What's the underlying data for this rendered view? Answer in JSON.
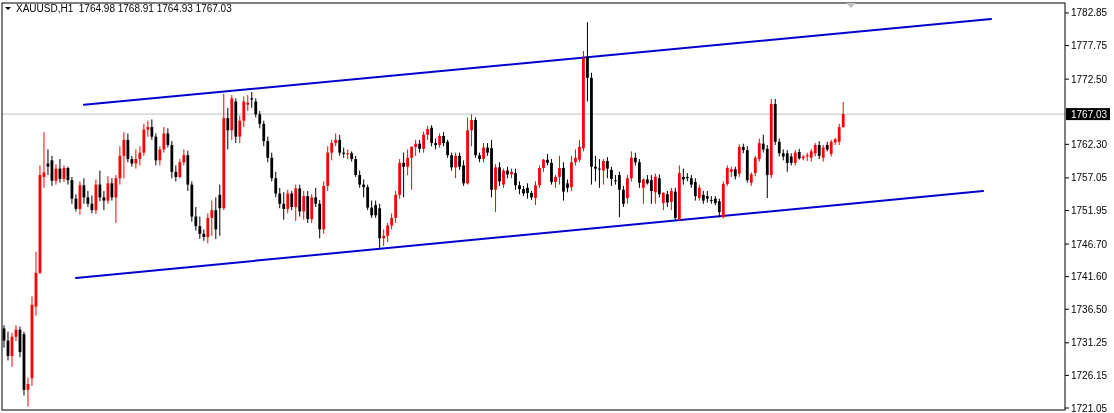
{
  "chart_data": {
    "type": "candlestick",
    "title": "XAUUSD,H1  1764.98 1768.91 1764.93 1767.03",
    "categories": [
      null,
      null,
      null,
      null,
      null,
      null,
      null,
      null,
      null,
      null,
      null,
      null,
      null,
      null,
      null,
      null,
      null,
      null,
      null,
      null,
      null,
      null,
      null,
      null,
      null,
      null,
      null,
      null,
      null,
      null,
      null,
      null,
      null,
      null,
      null,
      null,
      null,
      null,
      null,
      null,
      null,
      null,
      null,
      null,
      null,
      null,
      null,
      null,
      null,
      null,
      null,
      null,
      null,
      null,
      null,
      null,
      null,
      null,
      null,
      null,
      null,
      null,
      null,
      null,
      null,
      null,
      null,
      null,
      null,
      null,
      null,
      null,
      null,
      null,
      null,
      null,
      null,
      null,
      null,
      null,
      null,
      null,
      null,
      null,
      null,
      null,
      null,
      null,
      null,
      null,
      null,
      null,
      null,
      null,
      null,
      null,
      null,
      null,
      null,
      null,
      null,
      null,
      null,
      null,
      null,
      null,
      null,
      null,
      null,
      null,
      null,
      null,
      null,
      null,
      null,
      null,
      null,
      null,
      null,
      null,
      null,
      null,
      null,
      null,
      null,
      null,
      null,
      null,
      null,
      null,
      null,
      null,
      null,
      null,
      null,
      null,
      null,
      null,
      null,
      null,
      null,
      null,
      null,
      null,
      null,
      null,
      null,
      null,
      null,
      null,
      null,
      null,
      null,
      null,
      null,
      null,
      null,
      null,
      null,
      null,
      null,
      null,
      null,
      null,
      null,
      null,
      null,
      null,
      null,
      null,
      null,
      null,
      null,
      null,
      null,
      null,
      null,
      null,
      null,
      null,
      null,
      null,
      null,
      null,
      null,
      null,
      null,
      null,
      null,
      null,
      null,
      null,
      null,
      null,
      null,
      null,
      null,
      null,
      null,
      null,
      null,
      null,
      null,
      null,
      null,
      null,
      null,
      null,
      null,
      null,
      null,
      null,
      null,
      null,
      null,
      null,
      null,
      null,
      null,
      null,
      null,
      null,
      null,
      null,
      null,
      null,
      null,
      null,
      null,
      null,
      null,
      null,
      null,
      null,
      null,
      null,
      null,
      null,
      null,
      null,
      null,
      null,
      null,
      null,
      null,
      null,
      null,
      null,
      null,
      null,
      null,
      null,
      null,
      null,
      null,
      null,
      null,
      null,
      null,
      null,
      null,
      null,
      null,
      null,
      null,
      null
    ],
    "ohlc": [
      [
        1733.5,
        1734.0,
        1730.5,
        1731.6
      ],
      [
        1731.6,
        1733.0,
        1728.5,
        1729.2
      ],
      [
        1729.2,
        1732.8,
        1727.5,
        1732.2
      ],
      [
        1732.2,
        1734.0,
        1731.5,
        1733.3
      ],
      [
        1733.3,
        1733.8,
        1729.0,
        1729.8
      ],
      [
        1732.6,
        1733.0,
        1723.0,
        1723.9
      ],
      [
        1723.9,
        1725.8,
        1721.3,
        1724.8
      ],
      [
        1725.7,
        1738.5,
        1724.5,
        1737.2
      ],
      [
        1736.9,
        1745.5,
        1735.5,
        1742.2
      ],
      [
        1742.2,
        1759.0,
        1742.0,
        1757.5
      ],
      [
        1757.2,
        1764.2,
        1755.5,
        1757.9
      ],
      [
        1759.3,
        1761.5,
        1757.5,
        1758.8
      ],
      [
        1759.8,
        1760.5,
        1755.8,
        1756.6
      ],
      [
        1756.6,
        1759.2,
        1756.0,
        1758.5
      ],
      [
        1758.5,
        1760.0,
        1756.3,
        1756.9
      ],
      [
        1756.9,
        1759.0,
        1756.4,
        1758.6
      ],
      [
        1758.6,
        1758.8,
        1756.0,
        1756.7
      ],
      [
        1756.7,
        1757.2,
        1753.0,
        1753.8
      ],
      [
        1753.8,
        1754.5,
        1751.8,
        1752.2
      ],
      [
        1752.2,
        1756.5,
        1751.3,
        1755.9
      ],
      [
        1755.9,
        1757.0,
        1753.0,
        1754.0
      ],
      [
        1754.0,
        1755.0,
        1752.5,
        1753.0
      ],
      [
        1753.0,
        1754.3,
        1751.5,
        1752.0
      ],
      [
        1752.0,
        1756.8,
        1751.4,
        1756.0
      ],
      [
        1756.0,
        1758.2,
        1753.4,
        1754.0
      ],
      [
        1754.0,
        1755.0,
        1752.0,
        1753.5
      ],
      [
        1753.5,
        1757.3,
        1753.0,
        1756.2
      ],
      [
        1756.2,
        1757.0,
        1753.5,
        1754.0
      ],
      [
        1754.0,
        1757.5,
        1750.0,
        1757.0
      ],
      [
        1757.0,
        1762.0,
        1756.0,
        1760.5
      ],
      [
        1760.5,
        1764.2,
        1757.0,
        1763.0
      ],
      [
        1763.0,
        1764.0,
        1759.5,
        1760.0
      ],
      [
        1760.0,
        1760.5,
        1758.8,
        1759.3
      ],
      [
        1759.3,
        1761.5,
        1758.5,
        1760.0
      ],
      [
        1760.0,
        1762.0,
        1759.0,
        1761.0
      ],
      [
        1761.0,
        1765.5,
        1760.5,
        1764.6
      ],
      [
        1764.6,
        1766.0,
        1763.5,
        1765.0
      ],
      [
        1765.0,
        1766.2,
        1763.0,
        1763.5
      ],
      [
        1763.5,
        1764.0,
        1759.0,
        1759.8
      ],
      [
        1759.8,
        1762.0,
        1759.0,
        1761.5
      ],
      [
        1761.5,
        1765.0,
        1761.0,
        1764.0
      ],
      [
        1764.0,
        1764.8,
        1761.8,
        1762.2
      ],
      [
        1762.2,
        1762.8,
        1757.0,
        1758.0
      ],
      [
        1758.0,
        1759.0,
        1756.5,
        1757.2
      ],
      [
        1757.2,
        1760.0,
        1757.0,
        1759.5
      ],
      [
        1759.5,
        1761.5,
        1759.0,
        1760.6
      ],
      [
        1760.6,
        1761.3,
        1755.0,
        1756.0
      ],
      [
        1756.0,
        1756.5,
        1750.2,
        1751.0
      ],
      [
        1751.0,
        1752.5,
        1748.8,
        1749.5
      ],
      [
        1749.5,
        1751.0,
        1747.5,
        1748.3
      ],
      [
        1748.3,
        1749.0,
        1747.2,
        1747.8
      ],
      [
        1747.8,
        1751.5,
        1746.8,
        1750.8
      ],
      [
        1750.8,
        1753.5,
        1748.0,
        1752.0
      ],
      [
        1752.0,
        1754.0,
        1747.5,
        1749.0
      ],
      [
        1754.4,
        1756.0,
        1748.0,
        1752.3
      ],
      [
        1752.3,
        1770.2,
        1752.0,
        1766.4
      ],
      [
        1766.4,
        1768.0,
        1761.5,
        1764.5
      ],
      [
        1764.5,
        1770.0,
        1763.0,
        1769.5
      ],
      [
        1769.0,
        1769.5,
        1762.5,
        1763.5
      ],
      [
        1763.5,
        1766.8,
        1762.5,
        1766.0
      ],
      [
        1766.0,
        1769.8,
        1765.0,
        1769.0
      ],
      [
        1768.5,
        1770.0,
        1767.5,
        1768.8
      ],
      [
        1769.5,
        1770.5,
        1768.0,
        1769.3
      ],
      [
        1769.0,
        1769.5,
        1766.5,
        1767.0
      ],
      [
        1767.0,
        1767.5,
        1764.8,
        1765.5
      ],
      [
        1765.5,
        1766.0,
        1762.0,
        1762.8
      ],
      [
        1762.8,
        1763.5,
        1759.5,
        1760.2
      ],
      [
        1760.2,
        1761.0,
        1756.5,
        1757.0
      ],
      [
        1757.0,
        1758.0,
        1754.0,
        1754.6
      ],
      [
        1754.6,
        1755.5,
        1752.3,
        1753.0
      ],
      [
        1753.0,
        1754.8,
        1750.5,
        1752.2
      ],
      [
        1752.2,
        1755.2,
        1751.5,
        1754.6
      ],
      [
        1754.6,
        1755.0,
        1752.0,
        1752.5
      ],
      [
        1752.5,
        1756.0,
        1750.3,
        1755.4
      ],
      [
        1755.4,
        1756.0,
        1751.0,
        1751.8
      ],
      [
        1751.8,
        1755.0,
        1750.5,
        1754.2
      ],
      [
        1754.2,
        1755.0,
        1750.0,
        1750.6
      ],
      [
        1750.6,
        1754.5,
        1750.0,
        1754.0
      ],
      [
        1754.0,
        1755.5,
        1752.5,
        1753.0
      ],
      [
        1753.0,
        1753.6,
        1747.6,
        1749.0
      ],
      [
        1749.0,
        1756.5,
        1748.3,
        1755.8
      ],
      [
        1755.8,
        1762.0,
        1755.0,
        1761.0
      ],
      [
        1761.0,
        1763.0,
        1759.8,
        1762.5
      ],
      [
        1762.5,
        1764.0,
        1762.0,
        1763.0
      ],
      [
        1763.0,
        1763.8,
        1760.5,
        1761.0
      ],
      [
        1761.0,
        1761.8,
        1760.2,
        1760.8
      ],
      [
        1760.8,
        1761.5,
        1760.0,
        1760.9
      ],
      [
        1760.9,
        1761.2,
        1759.6,
        1760.0
      ],
      [
        1760.0,
        1760.5,
        1757.2,
        1757.5
      ],
      [
        1757.5,
        1758.2,
        1755.5,
        1756.0
      ],
      [
        1756.0,
        1756.8,
        1754.0,
        1755.6
      ],
      [
        1755.6,
        1756.0,
        1752.0,
        1752.4
      ],
      [
        1752.4,
        1753.5,
        1750.8,
        1751.2
      ],
      [
        1752.8,
        1753.5,
        1750.8,
        1751.2
      ],
      [
        1752.3,
        1753.0,
        1746.1,
        1747.6
      ],
      [
        1747.6,
        1749.0,
        1746.4,
        1748.0
      ],
      [
        1748.0,
        1750.0,
        1747.0,
        1749.6
      ],
      [
        1749.6,
        1751.5,
        1749.0,
        1750.8
      ],
      [
        1750.8,
        1755.0,
        1750.0,
        1754.4
      ],
      [
        1754.4,
        1760.0,
        1753.8,
        1759.4
      ],
      [
        1759.4,
        1761.0,
        1754.0,
        1758.8
      ],
      [
        1758.8,
        1761.5,
        1757.5,
        1760.2
      ],
      [
        1760.2,
        1762.0,
        1755.2,
        1761.9
      ],
      [
        1761.9,
        1763.0,
        1760.5,
        1762.4
      ],
      [
        1762.4,
        1763.0,
        1761.0,
        1761.6
      ],
      [
        1761.6,
        1764.3,
        1761.0,
        1763.8
      ],
      [
        1763.8,
        1765.2,
        1763.0,
        1764.7
      ],
      [
        1764.9,
        1765.3,
        1762.0,
        1762.5
      ],
      [
        1762.5,
        1763.2,
        1761.5,
        1762.2
      ],
      [
        1762.2,
        1764.0,
        1761.8,
        1763.6
      ],
      [
        1763.6,
        1764.2,
        1762.0,
        1762.5
      ],
      [
        1762.7,
        1763.0,
        1760.2,
        1760.6
      ],
      [
        1760.6,
        1761.0,
        1758.2,
        1758.7
      ],
      [
        1758.7,
        1761.0,
        1757.0,
        1760.5
      ],
      [
        1760.5,
        1761.0,
        1758.3,
        1758.8
      ],
      [
        1759.0,
        1759.8,
        1755.8,
        1756.2
      ],
      [
        1756.2,
        1766.5,
        1756.0,
        1764.5
      ],
      [
        1764.5,
        1767.0,
        1762.0,
        1766.1
      ],
      [
        1766.1,
        1766.5,
        1760.2,
        1760.6
      ],
      [
        1760.6,
        1761.0,
        1759.5,
        1760.0
      ],
      [
        1760.0,
        1762.5,
        1759.5,
        1761.8
      ],
      [
        1761.8,
        1762.5,
        1760.5,
        1761.0
      ],
      [
        1761.7,
        1763.0,
        1754.0,
        1755.2
      ],
      [
        1755.2,
        1759.2,
        1751.7,
        1758.7
      ],
      [
        1758.7,
        1759.5,
        1755.8,
        1756.5
      ],
      [
        1756.0,
        1758.5,
        1755.5,
        1758.2
      ],
      [
        1758.2,
        1758.8,
        1757.0,
        1757.6
      ],
      [
        1757.6,
        1758.5,
        1757.0,
        1758.0
      ],
      [
        1757.8,
        1758.5,
        1755.2,
        1755.9
      ],
      [
        1755.9,
        1756.5,
        1754.5,
        1755.3
      ],
      [
        1755.3,
        1755.8,
        1754.2,
        1754.6
      ],
      [
        1755.5,
        1756.2,
        1753.8,
        1754.7
      ],
      [
        1754.7,
        1755.0,
        1753.6,
        1754.0
      ],
      [
        1753.9,
        1756.5,
        1752.8,
        1755.9
      ],
      [
        1755.9,
        1759.0,
        1755.5,
        1758.6
      ],
      [
        1758.6,
        1760.0,
        1758.0,
        1759.9
      ],
      [
        1759.9,
        1760.8,
        1759.0,
        1759.4
      ],
      [
        1759.4,
        1760.0,
        1756.0,
        1756.4
      ],
      [
        1756.4,
        1757.5,
        1755.5,
        1757.2
      ],
      [
        1757.2,
        1760.5,
        1756.0,
        1758.6
      ],
      [
        1758.6,
        1759.5,
        1753.5,
        1754.9
      ],
      [
        1756.2,
        1756.8,
        1754.8,
        1755.5
      ],
      [
        1755.6,
        1760.5,
        1755.0,
        1759.5
      ],
      [
        1759.5,
        1761.5,
        1759.0,
        1760.2
      ],
      [
        1759.9,
        1763.0,
        1759.5,
        1761.9
      ],
      [
        1761.7,
        1776.9,
        1761.2,
        1775.8
      ],
      [
        1776.0,
        1781.4,
        1769.0,
        1772.7
      ],
      [
        1772.7,
        1773.5,
        1756.0,
        1758.8
      ],
      [
        1758.8,
        1760.5,
        1756.5,
        1758.5
      ],
      [
        1758.5,
        1760.0,
        1755.5,
        1758.4
      ],
      [
        1758.2,
        1760.0,
        1756.0,
        1759.7
      ],
      [
        1759.7,
        1760.3,
        1757.0,
        1758.5
      ],
      [
        1758.3,
        1758.8,
        1755.8,
        1756.9
      ],
      [
        1756.7,
        1757.5,
        1756.0,
        1756.6
      ],
      [
        1757.5,
        1758.0,
        1750.9,
        1755.2
      ],
      [
        1755.2,
        1755.8,
        1752.5,
        1753.0
      ],
      [
        1753.9,
        1757.5,
        1753.0,
        1757.0
      ],
      [
        1757.0,
        1761.2,
        1756.5,
        1760.2
      ],
      [
        1760.2,
        1761.0,
        1759.0,
        1759.5
      ],
      [
        1759.5,
        1760.0,
        1755.5,
        1756.3
      ],
      [
        1755.5,
        1757.0,
        1753.0,
        1756.8
      ],
      [
        1756.8,
        1757.5,
        1756.0,
        1756.2
      ],
      [
        1756.7,
        1757.5,
        1753.0,
        1755.0
      ],
      [
        1754.8,
        1757.7,
        1753.0,
        1757.2
      ],
      [
        1757.0,
        1757.6,
        1754.0,
        1754.5
      ],
      [
        1753.1,
        1754.8,
        1752.0,
        1754.7
      ],
      [
        1754.5,
        1755.0,
        1752.5,
        1753.2
      ],
      [
        1753.3,
        1755.5,
        1752.0,
        1755.0
      ],
      [
        1754.9,
        1755.5,
        1750.5,
        1750.8
      ],
      [
        1750.5,
        1759.0,
        1750.5,
        1757.8
      ],
      [
        1757.2,
        1758.5,
        1756.0,
        1756.8
      ],
      [
        1757.2,
        1757.8,
        1756.5,
        1757.0
      ],
      [
        1757.0,
        1757.5,
        1755.5,
        1756.0
      ],
      [
        1756.4,
        1757.0,
        1753.5,
        1754.2
      ],
      [
        1753.9,
        1756.0,
        1753.5,
        1755.5
      ],
      [
        1754.4,
        1755.0,
        1753.0,
        1753.5
      ],
      [
        1754.2,
        1755.0,
        1753.2,
        1753.8
      ],
      [
        1753.6,
        1754.2,
        1753.0,
        1753.5
      ],
      [
        1753.8,
        1754.2,
        1752.8,
        1753.1
      ],
      [
        1753.4,
        1753.8,
        1750.9,
        1751.7
      ],
      [
        1750.9,
        1756.5,
        1750.7,
        1756.1
      ],
      [
        1756.1,
        1759.0,
        1755.8,
        1758.6
      ],
      [
        1758.0,
        1758.8,
        1757.2,
        1758.4
      ],
      [
        1758.4,
        1758.8,
        1756.8,
        1757.3
      ],
      [
        1757.7,
        1762.3,
        1757.2,
        1761.9
      ],
      [
        1761.9,
        1762.4,
        1760.9,
        1761.4
      ],
      [
        1761.4,
        1762.0,
        1756.3,
        1756.7
      ],
      [
        1756.3,
        1757.9,
        1755.8,
        1757.6
      ],
      [
        1757.8,
        1760.5,
        1757.3,
        1760.2
      ],
      [
        1760.0,
        1763.2,
        1759.6,
        1762.5
      ],
      [
        1762.4,
        1763.8,
        1761.0,
        1761.5
      ],
      [
        1761.6,
        1762.2,
        1753.9,
        1757.5
      ],
      [
        1757.5,
        1769.4,
        1757.0,
        1768.6
      ],
      [
        1768.6,
        1769.4,
        1762.2,
        1762.7
      ],
      [
        1762.7,
        1763.2,
        1760.4,
        1760.9
      ],
      [
        1760.9,
        1761.5,
        1759.8,
        1760.4
      ],
      [
        1760.9,
        1761.4,
        1758.0,
        1759.4
      ],
      [
        1760.4,
        1760.9,
        1759.0,
        1759.4
      ],
      [
        1759.4,
        1761.4,
        1759.0,
        1761.0
      ],
      [
        1761.1,
        1761.6,
        1759.9,
        1760.1
      ],
      [
        1760.1,
        1760.6,
        1759.8,
        1760.4
      ],
      [
        1760.4,
        1761.0,
        1759.7,
        1760.6
      ],
      [
        1760.2,
        1761.6,
        1759.6,
        1761.2
      ],
      [
        1760.9,
        1762.5,
        1760.4,
        1762.2
      ],
      [
        1762.2,
        1762.8,
        1760.0,
        1760.5
      ],
      [
        1760.2,
        1762.2,
        1759.6,
        1761.8
      ],
      [
        1762.2,
        1762.7,
        1761.2,
        1761.5
      ],
      [
        1760.8,
        1763.0,
        1760.4,
        1762.7
      ],
      [
        1762.6,
        1763.3,
        1762.2,
        1763.1
      ],
      [
        1762.7,
        1765.5,
        1762.2,
        1765.0
      ],
      [
        1764.98,
        1768.91,
        1764.93,
        1767.03
      ],
      null,
      null,
      null,
      null,
      null,
      null,
      null,
      null,
      null,
      null,
      null,
      null,
      null,
      null,
      null,
      null,
      null,
      null,
      null,
      null,
      null,
      null,
      null,
      null,
      null,
      null,
      null,
      null,
      null,
      null,
      null,
      null,
      null,
      null,
      null,
      null,
      null,
      null,
      null,
      null,
      null,
      null,
      null,
      null,
      null,
      null,
      null,
      null,
      null,
      null,
      null,
      null,
      null,
      null,
      null
    ],
    "colors": [
      "#000000",
      "#000000",
      "#ff0000",
      "#ff0000",
      "#000000",
      "#000000",
      "#ff0000",
      "#ff0000",
      "#ff0000",
      "#ff0000",
      "#ff0000",
      "#000000",
      "#000000",
      "#ff0000",
      "#000000",
      "#ff0000",
      "#000000",
      "#000000",
      "#000000",
      "#ff0000",
      "#000000",
      "#000000",
      "#000000",
      "#ff0000",
      "#000000",
      "#000000",
      "#ff0000",
      "#000000",
      "#ff0000",
      "#ff0000",
      "#ff0000",
      "#000000",
      "#000000",
      "#ff0000",
      "#ff0000",
      "#ff0000",
      "#ff0000",
      "#000000",
      "#000000",
      "#ff0000",
      "#ff0000",
      "#000000",
      "#000000",
      "#000000",
      "#ff0000",
      "#ff0000",
      "#000000",
      "#000000",
      "#000000",
      "#000000",
      "#000000",
      "#ff0000",
      "#ff0000",
      "#000000",
      "#000000",
      "#ff0000",
      "#000000",
      "#ff0000",
      "#000000",
      "#ff0000",
      "#ff0000",
      "#ff0000",
      "#000000",
      "#000000",
      "#000000",
      "#000000",
      "#000000",
      "#000000",
      "#000000",
      "#000000",
      "#000000",
      "#ff0000",
      "#000000",
      "#ff0000",
      "#000000",
      "#ff0000",
      "#000000",
      "#ff0000",
      "#000000",
      "#000000",
      "#ff0000",
      "#ff0000",
      "#ff0000",
      "#ff0000",
      "#000000",
      "#000000",
      "#ff0000",
      "#000000",
      "#000000",
      "#000000",
      "#000000",
      "#000000",
      "#000000",
      "#000000",
      "#000000",
      "#ff0000",
      "#ff0000",
      "#ff0000",
      "#ff0000",
      "#ff0000",
      "#000000",
      "#ff0000",
      "#ff0000",
      "#ff0000",
      "#000000",
      "#ff0000",
      "#ff0000",
      "#000000",
      "#000000",
      "#ff0000",
      "#000000",
      "#000000",
      "#000000",
      "#ff0000",
      "#000000",
      "#000000",
      "#ff0000",
      "#ff0000",
      "#000000",
      "#000000",
      "#ff0000",
      "#000000",
      "#000000",
      "#ff0000",
      "#000000",
      "#ff0000",
      "#000000",
      "#ff0000",
      "#000000",
      "#000000",
      "#000000",
      "#000000",
      "#000000",
      "#ff0000",
      "#ff0000",
      "#ff0000",
      "#000000",
      "#000000",
      "#ff0000",
      "#ff0000",
      "#000000",
      "#000000",
      "#ff0000",
      "#ff0000",
      "#ff0000",
      "#ff0000",
      "#000000",
      "#000000",
      "#000000",
      "#000000",
      "#ff0000",
      "#000000",
      "#000000",
      "#000000",
      "#000000",
      "#000000",
      "#ff0000",
      "#ff0000",
      "#000000",
      "#000000",
      "#ff0000",
      "#000000",
      "#000000",
      "#ff0000",
      "#000000",
      "#ff0000",
      "#000000",
      "#ff0000",
      "#000000",
      "#ff0000",
      "#000000",
      "#000000",
      "#000000",
      "#000000",
      "#ff0000",
      "#000000",
      "#000000",
      "#000000",
      "#000000",
      "#000000",
      "#ff0000",
      "#ff0000",
      "#ff0000",
      "#000000",
      "#ff0000",
      "#000000",
      "#000000",
      "#ff0000",
      "#ff0000",
      "#ff0000",
      "#000000",
      "#000000",
      "#ff0000",
      "#000000",
      "#000000",
      "#000000",
      "#000000",
      "#000000",
      "#ff0000",
      "#000000",
      "#ff0000",
      "#ff0000",
      "#ff0000",
      "#ff0000",
      "#000000",
      "#ff0000",
      "#000000",
      "#ff0000",
      "#ff0000",
      "#ff0000",
      "#ff0000",
      null,
      null,
      null,
      null,
      null,
      null,
      null,
      null,
      null,
      null,
      null,
      null,
      null,
      null,
      null,
      null,
      null,
      null,
      null,
      null,
      null,
      null,
      null,
      null,
      null,
      null,
      null,
      null,
      null,
      null,
      null,
      null,
      null,
      null,
      null,
      null,
      null,
      null,
      null,
      null,
      null,
      null,
      null,
      null,
      null,
      null,
      null,
      null,
      null,
      null,
      null,
      null,
      null,
      null,
      null
    ],
    "series": [
      {
        "type": "line",
        "values": [
          null,
          null,
          null,
          null,
          null,
          null,
          null,
          null,
          null,
          null,
          null,
          null,
          null,
          null,
          null,
          null,
          null,
          null,
          null,
          null,
          1768.5,
          null,
          null,
          null,
          null,
          null,
          null,
          null,
          null,
          null,
          null,
          null,
          null,
          null,
          null,
          null,
          null,
          null,
          null,
          null,
          null,
          null,
          null,
          null,
          null,
          null,
          null,
          null,
          null,
          null,
          null,
          null,
          null,
          null,
          null,
          null,
          null,
          null,
          null,
          null,
          null,
          null,
          null,
          null,
          null,
          null,
          null,
          null,
          null,
          null,
          null,
          null,
          null,
          null,
          null,
          null,
          null,
          null,
          null,
          null,
          null,
          null,
          null,
          null,
          null,
          null,
          null,
          null,
          null,
          null,
          null,
          null,
          null,
          null,
          null,
          null,
          null,
          null,
          null,
          null,
          null,
          null,
          null,
          null,
          null,
          null,
          null,
          null,
          null,
          null,
          null,
          null,
          null,
          null,
          null,
          null,
          null,
          null,
          null,
          null,
          null,
          null,
          null,
          null,
          null,
          null,
          null,
          null,
          null,
          null,
          null,
          null,
          null,
          null,
          null,
          null,
          null,
          null,
          null,
          null,
          null,
          null,
          null,
          null,
          null,
          null,
          null,
          null,
          null,
          null,
          null,
          null,
          null,
          null,
          null,
          null,
          null,
          null,
          null,
          null,
          null,
          null,
          null,
          null,
          null,
          null,
          null,
          null,
          null,
          null,
          null,
          null,
          null,
          null,
          null,
          null,
          null,
          null,
          null,
          null,
          null,
          null,
          null,
          null,
          null,
          null,
          null,
          null,
          null,
          null,
          null,
          null,
          null,
          null,
          null,
          null,
          null,
          null,
          null,
          null,
          null,
          null,
          null,
          null,
          null,
          null,
          null,
          null,
          null,
          null,
          null,
          null,
          null,
          null,
          null,
          null,
          null,
          null,
          null,
          null,
          null,
          null,
          null,
          null,
          null,
          null,
          null,
          null,
          null,
          null,
          null,
          null,
          null,
          null,
          null,
          null,
          null,
          null,
          null,
          null,
          null,
          null,
          null,
          null,
          null,
          null,
          null,
          1781.9,
          null,
          null,
          null,
          null,
          null,
          null,
          null,
          null,
          null,
          null,
          null,
          null,
          null,
          null,
          null,
          null,
          null,
          null
        ],
        "color": "#0000cc"
      },
      {
        "type": "line",
        "values": [
          null,
          null,
          null,
          null,
          null,
          null,
          null,
          null,
          null,
          null,
          null,
          null,
          null,
          null,
          null,
          null,
          null,
          null,
          1741.4,
          null,
          null,
          null,
          null,
          null,
          null,
          null,
          null,
          null,
          null,
          null,
          null,
          null,
          null,
          null,
          null,
          null,
          null,
          null,
          null,
          null,
          null,
          null,
          null,
          null,
          null,
          null,
          null,
          null,
          null,
          null,
          null,
          null,
          null,
          null,
          null,
          null,
          null,
          null,
          null,
          null,
          null,
          null,
          null,
          null,
          null,
          null,
          null,
          null,
          null,
          null,
          null,
          null,
          null,
          null,
          null,
          null,
          null,
          null,
          null,
          null,
          null,
          null,
          null,
          null,
          null,
          null,
          null,
          null,
          null,
          null,
          null,
          null,
          null,
          null,
          null,
          null,
          null,
          null,
          null,
          null,
          null,
          null,
          null,
          null,
          null,
          null,
          null,
          null,
          null,
          null,
          null,
          null,
          null,
          null,
          null,
          null,
          null,
          null,
          null,
          null,
          null,
          null,
          null,
          null,
          null,
          null,
          null,
          null,
          null,
          null,
          null,
          null,
          null,
          null,
          null,
          null,
          null,
          null,
          null,
          null,
          null,
          null,
          null,
          null,
          null,
          null,
          null,
          null,
          null,
          null,
          null,
          null,
          null,
          null,
          null,
          null,
          null,
          null,
          null,
          null,
          null,
          null,
          null,
          null,
          null,
          null,
          null,
          null,
          null,
          null,
          null,
          null,
          null,
          null,
          null,
          null,
          null,
          null,
          null,
          null,
          null,
          null,
          null,
          null,
          null,
          null,
          null,
          null,
          null,
          null,
          null,
          null,
          null,
          null,
          null,
          null,
          null,
          null,
          null,
          null,
          null,
          null,
          null,
          null,
          null,
          null,
          null,
          null,
          null,
          null,
          null,
          null,
          null,
          null,
          null,
          null,
          null,
          null,
          null,
          null,
          null,
          null,
          null,
          null,
          null,
          null,
          null,
          null,
          null,
          null,
          null,
          null,
          null,
          null,
          null,
          null,
          null,
          null,
          null,
          null,
          null,
          null,
          null,
          null,
          null,
          1755.0,
          null,
          null,
          null,
          null,
          null,
          null,
          null,
          null,
          null,
          null,
          null,
          null,
          null,
          null,
          null,
          null,
          null,
          null,
          null,
          null
        ],
        "color": "#0000cc"
      }
    ],
    "ylim": [
      1720.74,
      1784.41
    ],
    "yticks": [
      {
        "value": 1721.05,
        "label": "1721.05"
      },
      {
        "value": 1726.15,
        "label": "1726.15"
      },
      {
        "value": 1731.25,
        "label": "1731.25"
      },
      {
        "value": 1736.5,
        "label": "1736.50"
      },
      {
        "value": 1741.6,
        "label": "1741.60"
      },
      {
        "value": 1746.7,
        "label": "1746.70"
      },
      {
        "value": 1751.95,
        "label": "1751.95"
      },
      {
        "value": 1757.05,
        "label": "1757.05"
      },
      {
        "value": 1762.3,
        "label": "1762.30"
      },
      {
        "value": 1772.5,
        "label": "1772.50"
      },
      {
        "value": 1777.75,
        "label": "1777.75"
      },
      {
        "value": 1782.85,
        "label": "1782.85"
      }
    ],
    "tick_labels": "y",
    "ref_lines": [
      {
        "axis": "y",
        "value": 1767.03,
        "label": "1767.03",
        "color": "#c0c0c0"
      }
    ]
  }
}
